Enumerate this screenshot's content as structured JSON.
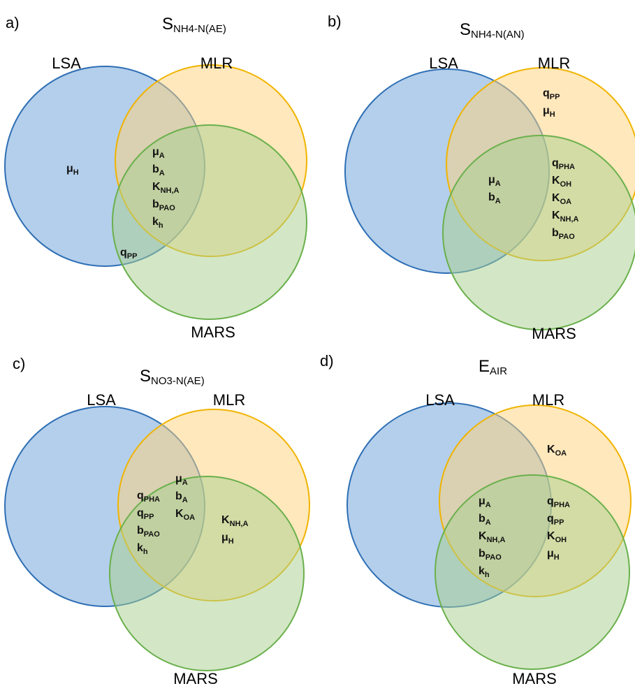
{
  "colors": {
    "lsa_fill": "#6a9fd8",
    "lsa_stroke": "#2e6fb5",
    "mlr_fill": "#ffd27a",
    "mlr_stroke": "#f0b400",
    "mars_fill": "#a8d08d",
    "mars_stroke": "#6ab04c"
  },
  "set_labels": {
    "lsa": "LSA",
    "mlr": "MLR",
    "mars": "MARS"
  },
  "panels": [
    {
      "label": "a)",
      "title": {
        "main": "S",
        "sub": "NH4-N(AE)"
      },
      "regions": [
        {
          "region": "lsa_only",
          "params": [
            {
              "m": "μ",
              "s": "H"
            }
          ]
        },
        {
          "region": "all_three",
          "params": [
            {
              "m": "μ",
              "s": "A"
            },
            {
              "m": "b",
              "s": "A"
            },
            {
              "m": "K",
              "s": "NH,A"
            },
            {
              "m": "b",
              "s": "PAO"
            },
            {
              "m": "k",
              "s": "h"
            }
          ]
        },
        {
          "region": "lsa_mars",
          "params": [
            {
              "m": "q",
              "s": "PP"
            }
          ]
        }
      ]
    },
    {
      "label": "b)",
      "title": {
        "main": "S",
        "sub": "NH4-N(AN)"
      },
      "regions": [
        {
          "region": "mlr_only",
          "params": [
            {
              "m": "q",
              "s": "PP"
            },
            {
              "m": "μ",
              "s": "H"
            }
          ]
        },
        {
          "region": "all_three",
          "params": [
            {
              "m": "μ",
              "s": "A"
            },
            {
              "m": "b",
              "s": "A"
            }
          ]
        },
        {
          "region": "mlr_mars",
          "params": [
            {
              "m": "q",
              "s": "PHA"
            },
            {
              "m": "K",
              "s": "OH"
            },
            {
              "m": "K",
              "s": "OA"
            },
            {
              "m": "K",
              "s": "NH,A"
            },
            {
              "m": "b",
              "s": "PAO"
            }
          ]
        }
      ]
    },
    {
      "label": "c)",
      "title": {
        "main": "S",
        "sub": "NO3-N(AE)"
      },
      "regions": [
        {
          "region": "all_three_left",
          "params": [
            {
              "m": "q",
              "s": "PHA"
            },
            {
              "m": "q",
              "s": "PP"
            },
            {
              "m": "b",
              "s": "PAO"
            },
            {
              "m": "k",
              "s": "h"
            }
          ]
        },
        {
          "region": "all_three_right",
          "params": [
            {
              "m": "μ",
              "s": "A"
            },
            {
              "m": "b",
              "s": "A"
            },
            {
              "m": "K",
              "s": "OA"
            }
          ]
        },
        {
          "region": "mlr_mars",
          "params": [
            {
              "m": "K",
              "s": "NH,A"
            },
            {
              "m": "μ",
              "s": "H"
            }
          ]
        }
      ]
    },
    {
      "label": "d)",
      "title": {
        "main": "E",
        "sub": "AIR"
      },
      "regions": [
        {
          "region": "mlr_only",
          "params": [
            {
              "m": "K",
              "s": "OA"
            }
          ]
        },
        {
          "region": "all_three",
          "params": [
            {
              "m": "μ",
              "s": "A"
            },
            {
              "m": "b",
              "s": "A"
            },
            {
              "m": "K",
              "s": "NH,A"
            },
            {
              "m": "b",
              "s": "PAO"
            },
            {
              "m": "k",
              "s": "h"
            }
          ]
        },
        {
          "region": "mlr_mars",
          "params": [
            {
              "m": "q",
              "s": "PHA"
            },
            {
              "m": "q",
              "s": "PP"
            },
            {
              "m": "K",
              "s": "OH"
            },
            {
              "m": "μ",
              "s": "H"
            }
          ]
        }
      ]
    }
  ]
}
